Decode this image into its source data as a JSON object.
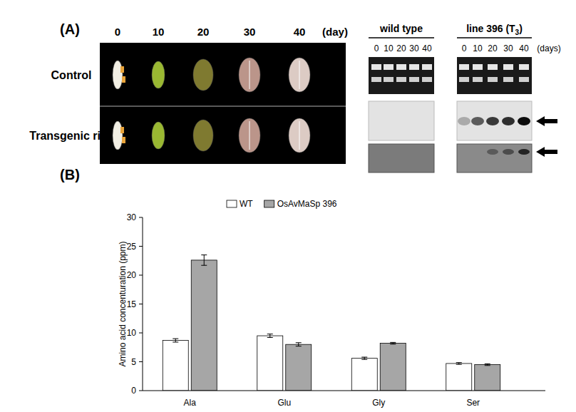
{
  "panel_a": {
    "label": "(A)",
    "photo": {
      "days": [
        0,
        10,
        20,
        30,
        40
      ],
      "day_unit": "(day)",
      "rows": [
        "Control",
        "Transgenic rice"
      ]
    },
    "blot": {
      "groups": [
        {
          "label": "wild type"
        },
        {
          "label": "line 396 (T",
          "sub": "3",
          "after": ")"
        }
      ],
      "days": [
        0,
        10,
        20,
        30,
        40
      ],
      "day_unit": "(days)"
    }
  },
  "chart_data": {
    "type": "bar",
    "annotations": [
      "(B)"
    ],
    "y_label": "Amino acid concenturation (ppm)",
    "categories": [
      "Ala",
      "Glu",
      "Gly",
      "Ser"
    ],
    "series": [
      {
        "name": "WT",
        "color": "#ffffff",
        "values": [
          8.7,
          9.5,
          5.6,
          4.7
        ],
        "errors": [
          0.3,
          0.3,
          0.2,
          0.15
        ]
      },
      {
        "name": "OsAvMaSp 396",
        "color": "#a6a6a6",
        "values": [
          22.6,
          8.0,
          8.2,
          4.5
        ],
        "errors": [
          0.9,
          0.3,
          0.15,
          0.15
        ]
      }
    ],
    "ylim": [
      0,
      30
    ],
    "yticks": [
      0,
      5,
      10,
      15,
      20,
      25,
      30
    ],
    "grid": false,
    "legend": "top-left"
  }
}
